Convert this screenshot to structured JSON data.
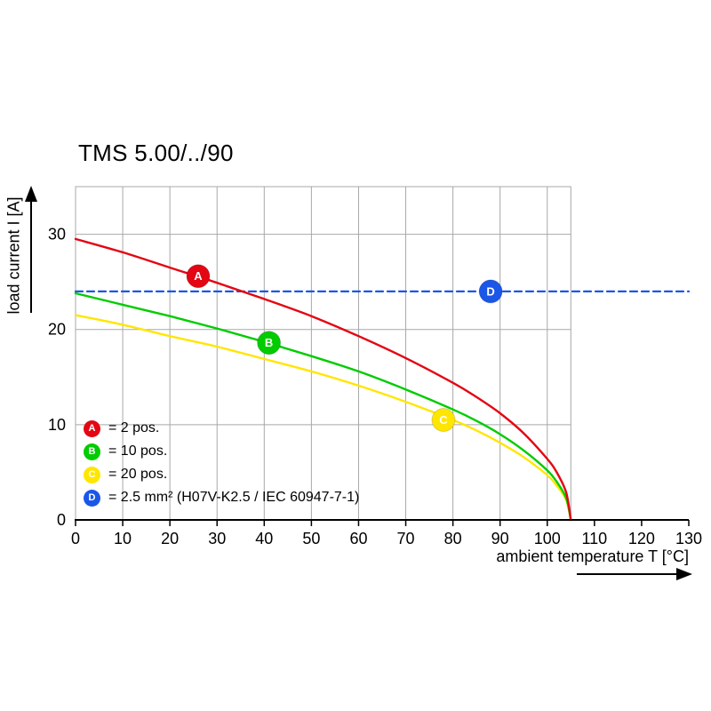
{
  "title": "TMS 5.00/../90",
  "chart_data": {
    "type": "line",
    "title": "TMS 5.00/../90",
    "xlabel": "ambient temperature T [°C]",
    "ylabel": "load current I [A]",
    "xlim": [
      0,
      130
    ],
    "ylim": [
      0,
      35
    ],
    "plot_xmax": 105,
    "x_ticks": [
      0,
      10,
      20,
      30,
      40,
      50,
      60,
      70,
      80,
      90,
      100,
      110,
      120,
      130
    ],
    "y_ticks": [
      0,
      10,
      20,
      30
    ],
    "grid": true,
    "grid_color": "#a8a8a8",
    "axis_color": "#000000",
    "legend_position": "inside bottom-left",
    "series": [
      {
        "name": "A",
        "label": "= 2 pos.",
        "color": "#e30613",
        "style": "solid",
        "marker": {
          "x": 26,
          "y": 25.6
        },
        "points": [
          [
            0,
            29.5
          ],
          [
            10,
            28.1
          ],
          [
            20,
            26.5
          ],
          [
            30,
            24.9
          ],
          [
            40,
            23.2
          ],
          [
            50,
            21.4
          ],
          [
            60,
            19.3
          ],
          [
            70,
            17.0
          ],
          [
            80,
            14.4
          ],
          [
            85,
            12.9
          ],
          [
            90,
            11.2
          ],
          [
            95,
            9.1
          ],
          [
            100,
            6.4
          ],
          [
            102,
            5.0
          ],
          [
            104,
            2.9
          ],
          [
            105,
            0
          ]
        ]
      },
      {
        "name": "B",
        "label": "= 10 pos.",
        "color": "#00cc00",
        "style": "solid",
        "marker": {
          "x": 41,
          "y": 18.6
        },
        "points": [
          [
            0,
            23.8
          ],
          [
            10,
            22.6
          ],
          [
            20,
            21.4
          ],
          [
            30,
            20.1
          ],
          [
            40,
            18.7
          ],
          [
            50,
            17.2
          ],
          [
            60,
            15.6
          ],
          [
            70,
            13.7
          ],
          [
            80,
            11.6
          ],
          [
            85,
            10.4
          ],
          [
            90,
            9.0
          ],
          [
            95,
            7.3
          ],
          [
            100,
            5.2
          ],
          [
            102,
            4.0
          ],
          [
            104,
            2.3
          ],
          [
            105,
            0
          ]
        ]
      },
      {
        "name": "C",
        "label": "= 20 pos.",
        "color": "#ffe600",
        "style": "solid",
        "marker": {
          "x": 78,
          "y": 10.5
        },
        "points": [
          [
            0,
            21.5
          ],
          [
            10,
            20.5
          ],
          [
            20,
            19.3
          ],
          [
            30,
            18.2
          ],
          [
            40,
            16.9
          ],
          [
            50,
            15.6
          ],
          [
            60,
            14.1
          ],
          [
            70,
            12.4
          ],
          [
            80,
            10.5
          ],
          [
            85,
            9.4
          ],
          [
            90,
            8.1
          ],
          [
            95,
            6.6
          ],
          [
            100,
            4.7
          ],
          [
            102,
            3.6
          ],
          [
            104,
            2.1
          ],
          [
            105,
            0
          ]
        ]
      },
      {
        "name": "D",
        "label": "= 2.5 mm² (H07V-K2.5 / IEC 60947-7-1)",
        "color": "#1a57e8",
        "style": "dashed",
        "marker": {
          "x": 88,
          "y": 24
        },
        "points": [
          [
            0,
            24
          ],
          [
            130,
            24
          ]
        ]
      }
    ]
  }
}
